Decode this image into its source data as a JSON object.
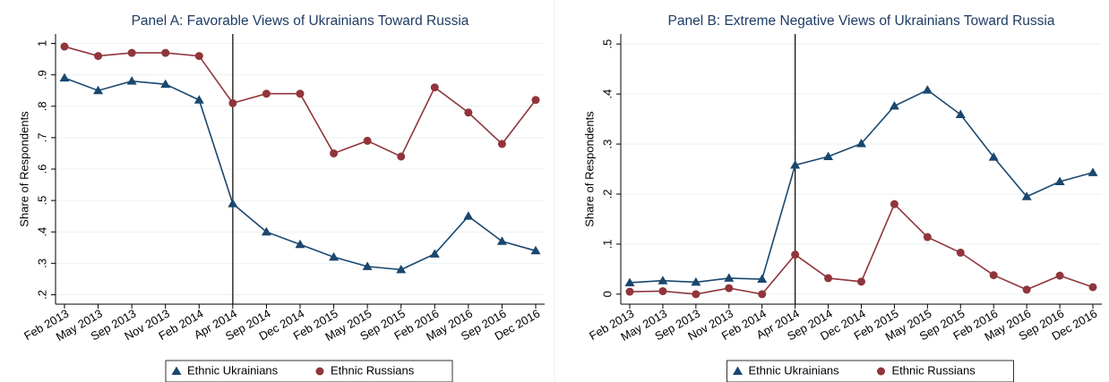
{
  "chart_data": [
    {
      "type": "line",
      "title": "Panel A: Favorable Views of Ukrainians Toward Russia",
      "y_label": "Share of Respondents",
      "categories": [
        "Feb 2013",
        "May 2013",
        "Sep 2013",
        "Nov 2013",
        "Feb 2014",
        "Apr 2014",
        "Sep 2014",
        "Dec 2014",
        "Feb 2015",
        "May 2015",
        "Sep 2015",
        "Feb 2016",
        "May 2016",
        "Sep 2016",
        "Dec 2016"
      ],
      "series": [
        {
          "name": "Ethnic Ukrainians",
          "color": "#1a476f",
          "marker": "triangle",
          "values": [
            0.89,
            0.85,
            0.88,
            0.87,
            0.82,
            0.49,
            0.4,
            0.36,
            0.32,
            0.29,
            0.28,
            0.33,
            0.45,
            0.37,
            0.34
          ]
        },
        {
          "name": "Ethnic Russians",
          "color": "#90353b",
          "marker": "circle",
          "values": [
            0.99,
            0.96,
            0.97,
            0.97,
            0.96,
            0.81,
            0.84,
            0.84,
            0.65,
            0.69,
            0.64,
            0.86,
            0.78,
            0.68,
            0.82
          ]
        }
      ],
      "ylim": [
        0.17,
        1.03
      ],
      "yticks": [
        {
          "value": 0.2,
          "label": ".2"
        },
        {
          "value": 0.3,
          "label": ".3"
        },
        {
          "value": 0.4,
          "label": ".4"
        },
        {
          "value": 0.5,
          "label": ".5"
        },
        {
          "value": 0.6,
          "label": ".6"
        },
        {
          "value": 0.7,
          "label": ".7"
        },
        {
          "value": 0.8,
          "label": ".8"
        },
        {
          "value": 0.9,
          "label": ".9"
        },
        1
      ],
      "grid": true,
      "vline": "Apr 2014",
      "legend": "bottom"
    },
    {
      "type": "line",
      "title": "Panel B: Extreme Negative Views of Ukrainians Toward Russia",
      "y_label": "Share of Respondents",
      "categories": [
        "Feb 2013",
        "May 2013",
        "Sep 2013",
        "Nov 2013",
        "Feb 2014",
        "Apr 2014",
        "Sep 2014",
        "Dec 2014",
        "Feb 2015",
        "May 2015",
        "Sep 2015",
        "Feb 2016",
        "May 2016",
        "Sep 2016",
        "Dec 2016"
      ],
      "series": [
        {
          "name": "Ethnic Ukrainians",
          "color": "#1a476f",
          "marker": "triangle",
          "values": [
            0.023,
            0.027,
            0.024,
            0.032,
            0.03,
            0.258,
            0.275,
            0.301,
            0.376,
            0.408,
            0.359,
            0.274,
            0.195,
            0.225,
            0.243
          ]
        },
        {
          "name": "Ethnic Russians",
          "color": "#90353b",
          "marker": "circle",
          "values": [
            0.005,
            0.006,
            0.0,
            0.012,
            0.0,
            0.079,
            0.032,
            0.025,
            0.18,
            0.114,
            0.083,
            0.038,
            0.009,
            0.037,
            0.014
          ]
        }
      ],
      "ylim": [
        -0.02,
        0.52
      ],
      "yticks": [
        0,
        {
          "value": 0.1,
          "label": ".1"
        },
        {
          "value": 0.2,
          "label": ".2"
        },
        {
          "value": 0.3,
          "label": ".3"
        },
        {
          "value": 0.4,
          "label": ".4"
        },
        {
          "value": 0.5,
          "label": ".5"
        }
      ],
      "grid": true,
      "vline": "Apr 2014",
      "legend": "bottom"
    }
  ]
}
